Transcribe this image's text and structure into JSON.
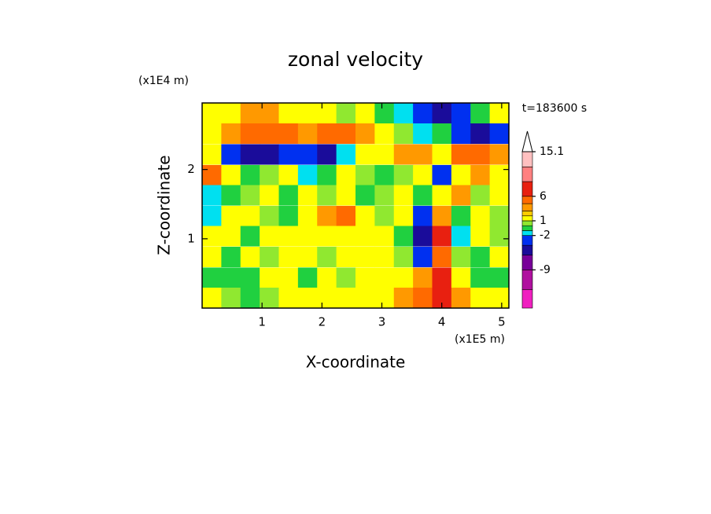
{
  "chart_data": {
    "type": "contour",
    "title": "zonal velocity",
    "x_label": "X-coordinate",
    "y_label": "Z-coordinate",
    "x_unit": "(x1E5 m)",
    "y_unit": "(x1E4 m)",
    "annotation": "t=183600 s",
    "xlim": [
      0,
      5.12
    ],
    "ylim": [
      0,
      2.96
    ],
    "xticks": [
      1,
      2,
      3,
      4,
      5
    ],
    "yticks": [
      1,
      2
    ],
    "x": [
      0.16,
      0.48,
      0.8,
      1.12,
      1.44,
      1.76,
      2.08,
      2.4,
      2.72,
      3.04,
      3.36,
      3.68,
      4.0,
      4.32,
      4.64,
      4.96
    ],
    "y": [
      2.81,
      2.52,
      2.22,
      1.92,
      1.63,
      1.33,
      1.04,
      0.74,
      0.44,
      0.15
    ],
    "z": [
      [
        1.5,
        1.5,
        3,
        3,
        1.5,
        1.5,
        1.5,
        0.5,
        1.5,
        -0.5,
        -1.5,
        -3,
        -5,
        -3,
        -0.5,
        1.5
      ],
      [
        1.5,
        3,
        5,
        5,
        5,
        3,
        5,
        5,
        3,
        1.5,
        0.5,
        -1.5,
        -0.5,
        -3,
        -5,
        -3
      ],
      [
        1.5,
        -3,
        -5,
        -5,
        -3,
        -3,
        -5,
        -1.5,
        1.5,
        1.5,
        3,
        3,
        1.5,
        5,
        5,
        3
      ],
      [
        5,
        1.5,
        -0.5,
        0.5,
        1.5,
        -1.5,
        -0.5,
        1.5,
        0.5,
        -0.5,
        0.5,
        1.5,
        -3,
        1.5,
        3,
        1.5
      ],
      [
        -1.5,
        -0.5,
        0.5,
        1.5,
        -0.5,
        1.5,
        0.5,
        1.5,
        -0.5,
        0.5,
        1.5,
        -0.5,
        1.5,
        3,
        0.5,
        1.5
      ],
      [
        -1.5,
        1.5,
        1.5,
        0.5,
        -0.5,
        1.5,
        3,
        5,
        1.5,
        0.5,
        1.5,
        -3,
        3,
        -0.5,
        1.5,
        0.5
      ],
      [
        1.5,
        1.5,
        -0.5,
        1.5,
        1.5,
        1.5,
        1.5,
        1.5,
        1.5,
        1.5,
        -0.5,
        -5,
        8,
        -1.5,
        1.5,
        0.5
      ],
      [
        1.5,
        -0.5,
        1.5,
        0.5,
        1.5,
        1.5,
        0.5,
        1.5,
        1.5,
        1.5,
        0.5,
        -3,
        5,
        0.5,
        -0.5,
        1.5
      ],
      [
        -0.5,
        -0.5,
        -0.5,
        1.5,
        1.5,
        -0.5,
        1.5,
        0.5,
        1.5,
        1.5,
        1.5,
        3,
        7,
        1.5,
        -0.5,
        -0.5
      ],
      [
        1.5,
        0.5,
        -0.5,
        0.5,
        1.5,
        1.5,
        1.5,
        1.5,
        1.5,
        1.5,
        3,
        5,
        7,
        3,
        1.5,
        1.5
      ]
    ],
    "colorbar": {
      "boundaries": [
        -16.8,
        -13,
        -9,
        -6,
        -4,
        -2,
        -1,
        0,
        1,
        2,
        3,
        4.5,
        6,
        9,
        12,
        15.1
      ],
      "colors": [
        "#f020c0",
        "#b0109f",
        "#780099",
        "#1a0c9a",
        "#0030f0",
        "#00e0f0",
        "#20d040",
        "#90e830",
        "#ffff00",
        "#ffcc00",
        "#ff9900",
        "#ff6a00",
        "#e82010",
        "#ff8080",
        "#ffc0c0"
      ],
      "ticks": [
        15.1,
        6,
        1,
        -2,
        -9
      ],
      "extend_max": true
    }
  }
}
